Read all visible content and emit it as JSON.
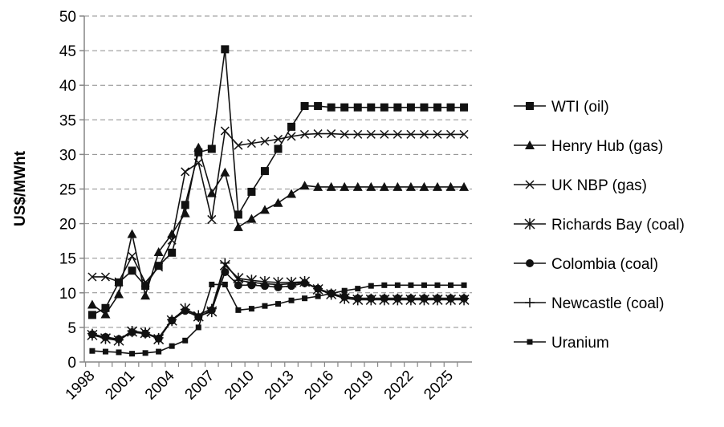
{
  "chart_data": {
    "type": "line",
    "title": "",
    "xlabel": "",
    "ylabel": "US$/MWht",
    "x": [
      1998,
      1999,
      2000,
      2001,
      2002,
      2003,
      2004,
      2005,
      2006,
      2007,
      2008,
      2009,
      2010,
      2011,
      2012,
      2013,
      2014,
      2015,
      2016,
      2017,
      2018,
      2019,
      2020,
      2021,
      2022,
      2023,
      2024,
      2025,
      2026
    ],
    "x_tick_labels": [
      "1998",
      "2001",
      "2004",
      "2007",
      "2010",
      "2013",
      "2016",
      "2019",
      "2022",
      "2025"
    ],
    "x_tick_values": [
      1998,
      2001,
      2004,
      2007,
      2010,
      2013,
      2016,
      2019,
      2022,
      2025
    ],
    "ylim": [
      0,
      50
    ],
    "y_ticks": [
      0,
      5,
      10,
      15,
      20,
      25,
      30,
      35,
      40,
      45,
      50
    ],
    "grid": "horizontal dashed",
    "legend_position": "right",
    "series": [
      {
        "name": "WTI (oil)",
        "marker": "square",
        "values": [
          6.8,
          7.8,
          11.5,
          13.2,
          11.0,
          13.9,
          15.8,
          22.7,
          30.3,
          30.8,
          45.2,
          21.3,
          24.6,
          27.6,
          30.8,
          34.0,
          37.0,
          37.0,
          36.8,
          36.8,
          36.8,
          36.8,
          36.8,
          36.8,
          36.8,
          36.8,
          36.8,
          36.8,
          36.8
        ]
      },
      {
        "name": "Henry Hub (gas)",
        "marker": "triangle",
        "values": [
          8.3,
          6.9,
          9.8,
          18.5,
          9.6,
          15.9,
          18.5,
          21.5,
          31.0,
          24.4,
          27.4,
          19.5,
          20.7,
          22.0,
          23.0,
          24.3,
          25.5,
          25.3,
          25.3,
          25.3,
          25.3,
          25.3,
          25.3,
          25.3,
          25.3,
          25.3,
          25.3,
          25.3,
          25.3
        ]
      },
      {
        "name": "UK NBP  (gas)",
        "marker": "x",
        "values": [
          12.3,
          12.3,
          11.6,
          15.3,
          11.5,
          13.7,
          17.6,
          27.5,
          28.8,
          20.6,
          33.4,
          31.3,
          31.6,
          31.9,
          32.2,
          32.6,
          32.9,
          33.0,
          33.0,
          32.9,
          32.9,
          32.9,
          32.9,
          32.9,
          32.9,
          32.9,
          32.9,
          32.9,
          32.9
        ]
      },
      {
        "name": "Richards Bay (coal)",
        "marker": "star",
        "values": [
          3.9,
          3.4,
          3.1,
          4.4,
          4.2,
          3.3,
          6.0,
          7.7,
          6.6,
          7.3,
          14.0,
          12.1,
          11.8,
          11.6,
          11.5,
          11.5,
          11.6,
          10.5,
          9.8,
          9.2,
          9.0,
          9.0,
          9.0,
          9.0,
          9.0,
          9.0,
          9.0,
          9.0,
          9.0
        ]
      },
      {
        "name": "Colombia (coal)",
        "marker": "circle",
        "values": [
          4.0,
          3.6,
          3.3,
          4.3,
          4.1,
          3.4,
          6.0,
          7.4,
          6.5,
          7.5,
          13.0,
          11.1,
          11.1,
          11.0,
          10.8,
          11.0,
          11.4,
          10.6,
          9.9,
          9.4,
          9.2,
          9.2,
          9.2,
          9.2,
          9.2,
          9.2,
          9.2,
          9.2,
          9.2
        ]
      },
      {
        "name": "Newcastle (coal)",
        "marker": "plus",
        "values": [
          4.1,
          3.5,
          3.2,
          4.5,
          4.2,
          3.5,
          6.1,
          7.6,
          6.8,
          7.7,
          14.3,
          11.8,
          11.5,
          11.3,
          11.2,
          11.3,
          11.5,
          10.6,
          9.9,
          9.4,
          9.2,
          9.2,
          9.2,
          9.2,
          9.2,
          9.2,
          9.2,
          9.2,
          9.2
        ]
      },
      {
        "name": "Uranium",
        "marker": "small-square",
        "values": [
          1.6,
          1.5,
          1.4,
          1.2,
          1.3,
          1.5,
          2.3,
          3.1,
          5.0,
          11.2,
          11.2,
          7.5,
          7.7,
          8.1,
          8.4,
          8.9,
          9.2,
          9.5,
          9.9,
          10.3,
          10.6,
          11.0,
          11.1,
          11.1,
          11.1,
          11.1,
          11.1,
          11.1,
          11.1
        ]
      }
    ]
  }
}
